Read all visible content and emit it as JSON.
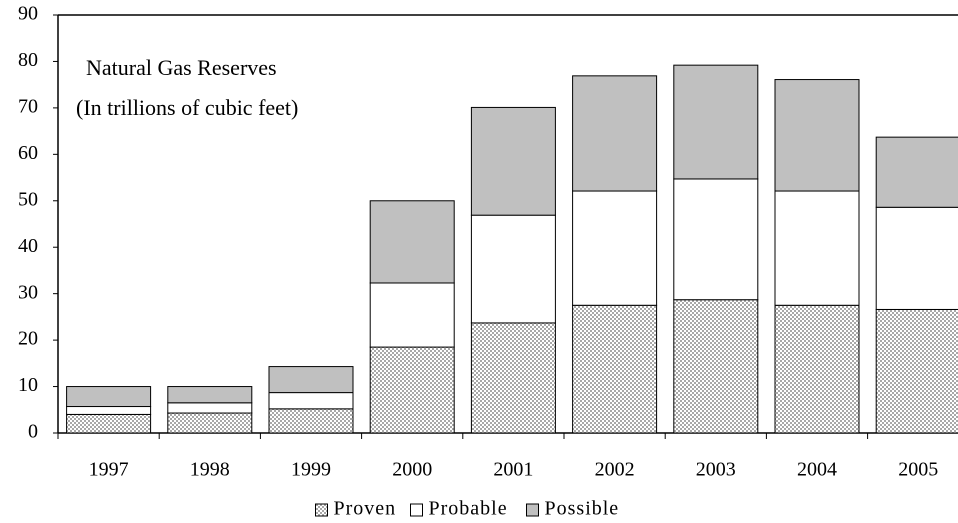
{
  "chart_data": {
    "type": "stacked_bar",
    "title": "Natural Gas Reserves",
    "subtitle": "(In trillions of cubic feet)",
    "categories": [
      "1997",
      "1998",
      "1999",
      "2000",
      "2001",
      "2002",
      "2003",
      "2004",
      "2005"
    ],
    "series": [
      {
        "name": "Proven",
        "color": "#a8a8a8",
        "hatch": true,
        "values": [
          4,
          4.3,
          5.2,
          18.5,
          23.7,
          27.5,
          28.7,
          27.5,
          26.6
        ]
      },
      {
        "name": "Probable",
        "color": "#ffffff",
        "values": [
          1.7,
          2.2,
          3.5,
          13.8,
          23.2,
          24.6,
          26,
          24.6,
          22
        ]
      },
      {
        "name": "Possible",
        "color": "#c0c0c0",
        "values": [
          4.3,
          3.5,
          5.6,
          17.7,
          23.2,
          24.8,
          24.5,
          24,
          15.1
        ]
      }
    ],
    "ylim": [
      0,
      90
    ],
    "yticks": [
      0,
      10,
      20,
      30,
      40,
      50,
      60,
      70,
      80,
      90
    ],
    "grid": false,
    "legend": "bottom"
  }
}
